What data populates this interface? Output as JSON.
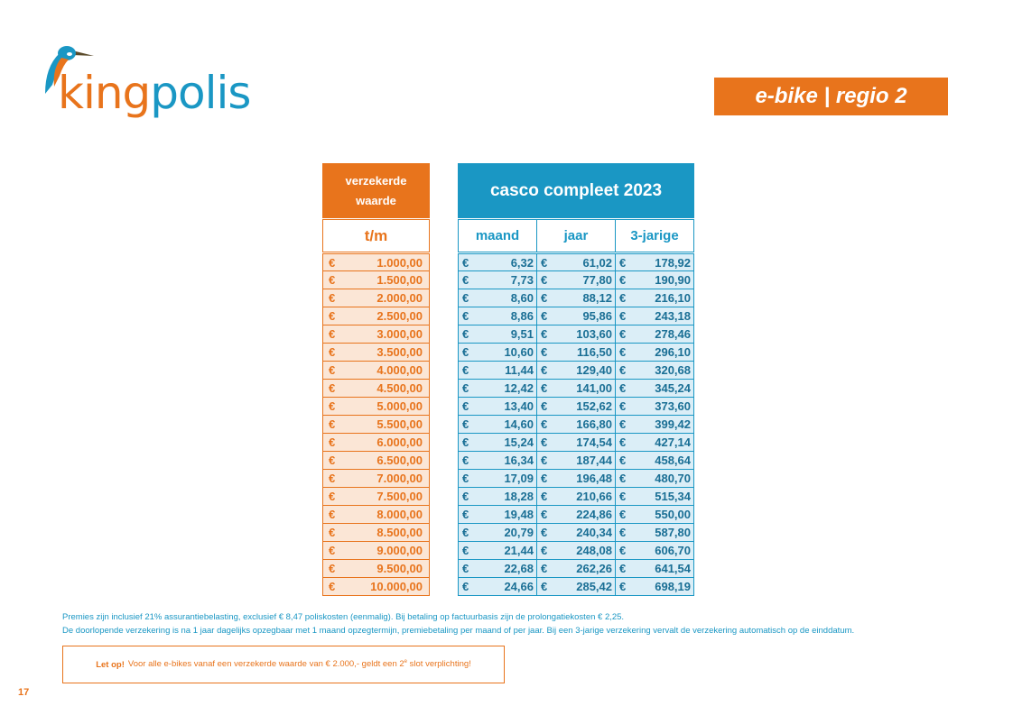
{
  "logo": {
    "brand_first": "king",
    "brand_second": "polis",
    "colors": {
      "orange": "#e8741c",
      "blue": "#1a97c4"
    }
  },
  "region_badge": "e-bike | regio 2",
  "left_header": {
    "line1": "verzekerde",
    "line2": "waarde",
    "sub": "t/m"
  },
  "right_header": {
    "title": "casco compleet 2023",
    "columns": [
      "maand",
      "jaar",
      "3-jarige"
    ]
  },
  "currency": "€",
  "rows": [
    {
      "insured": "1.000,00",
      "maand": "6,32",
      "jaar": "61,02",
      "driejarig": "178,92"
    },
    {
      "insured": "1.500,00",
      "maand": "7,73",
      "jaar": "77,80",
      "driejarig": "190,90"
    },
    {
      "insured": "2.000,00",
      "maand": "8,60",
      "jaar": "88,12",
      "driejarig": "216,10"
    },
    {
      "insured": "2.500,00",
      "maand": "8,86",
      "jaar": "95,86",
      "driejarig": "243,18"
    },
    {
      "insured": "3.000,00",
      "maand": "9,51",
      "jaar": "103,60",
      "driejarig": "278,46"
    },
    {
      "insured": "3.500,00",
      "maand": "10,60",
      "jaar": "116,50",
      "driejarig": "296,10"
    },
    {
      "insured": "4.000,00",
      "maand": "11,44",
      "jaar": "129,40",
      "driejarig": "320,68"
    },
    {
      "insured": "4.500,00",
      "maand": "12,42",
      "jaar": "141,00",
      "driejarig": "345,24"
    },
    {
      "insured": "5.000,00",
      "maand": "13,40",
      "jaar": "152,62",
      "driejarig": "373,60"
    },
    {
      "insured": "5.500,00",
      "maand": "14,60",
      "jaar": "166,80",
      "driejarig": "399,42"
    },
    {
      "insured": "6.000,00",
      "maand": "15,24",
      "jaar": "174,54",
      "driejarig": "427,14"
    },
    {
      "insured": "6.500,00",
      "maand": "16,34",
      "jaar": "187,44",
      "driejarig": "458,64"
    },
    {
      "insured": "7.000,00",
      "maand": "17,09",
      "jaar": "196,48",
      "driejarig": "480,70"
    },
    {
      "insured": "7.500,00",
      "maand": "18,28",
      "jaar": "210,66",
      "driejarig": "515,34"
    },
    {
      "insured": "8.000,00",
      "maand": "19,48",
      "jaar": "224,86",
      "driejarig": "550,00"
    },
    {
      "insured": "8.500,00",
      "maand": "20,79",
      "jaar": "240,34",
      "driejarig": "587,80"
    },
    {
      "insured": "9.000,00",
      "maand": "21,44",
      "jaar": "248,08",
      "driejarig": "606,70"
    },
    {
      "insured": "9.500,00",
      "maand": "22,68",
      "jaar": "262,26",
      "driejarig": "641,54"
    },
    {
      "insured": "10.000,00",
      "maand": "24,66",
      "jaar": "285,42",
      "driejarig": "698,19"
    }
  ],
  "notes": {
    "line1": "Premies zijn inclusief 21% assurantiebelasting, exclusief € 8,47 poliskosten (eenmalig). Bij betaling op factuurbasis zijn de prolongatiekosten € 2,25.",
    "line2": "De doorlopende verzekering is na 1 jaar dagelijks opzegbaar met 1 maand opzegtermijn, premiebetaling per maand of per jaar. Bij een 3-jarige verzekering vervalt de verzekering automatisch op de einddatum."
  },
  "warning": {
    "bold": "Let op!",
    "text_before": "Voor alle e-bikes vanaf een verzekerde waarde van € 2.000,- geldt een 2",
    "superscript": "e",
    "text_after": " slot verplichting!"
  },
  "page_number": "17"
}
